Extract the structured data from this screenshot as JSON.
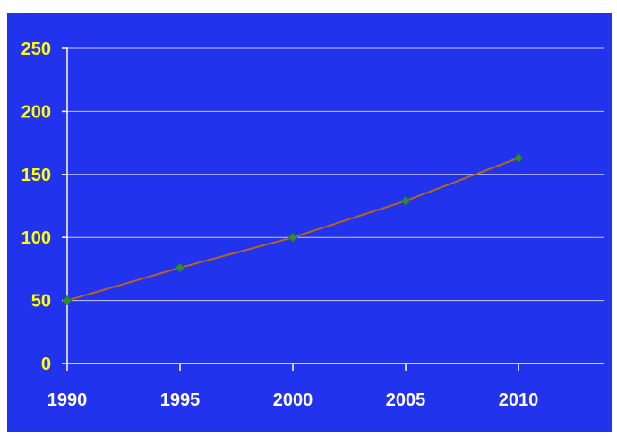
{
  "chart_data": {
    "type": "line",
    "title": "",
    "xlabel": "",
    "ylabel": "",
    "x": [
      1990,
      1995,
      2000,
      2005,
      2010
    ],
    "x_tick_labels": [
      "1990",
      "1995",
      "2000",
      "2005",
      "2010"
    ],
    "y_tick_labels": [
      "0",
      "50",
      "100",
      "150",
      "200",
      "250"
    ],
    "xlim": [
      1990,
      2014
    ],
    "ylim": [
      0,
      250
    ],
    "series": [
      {
        "values": [
          50,
          76,
          100,
          129,
          163
        ]
      }
    ],
    "grid": "horizontal",
    "legend": "none",
    "colors": {
      "background": "#2233ee",
      "frame_border": "#ffffff",
      "grid": "#c9ccf5",
      "axis": "#ffffff",
      "line": "#b5651d",
      "marker": "#2e8b3a",
      "y_tick_text": "#ffff00",
      "x_tick_text": "#ffffff"
    }
  }
}
